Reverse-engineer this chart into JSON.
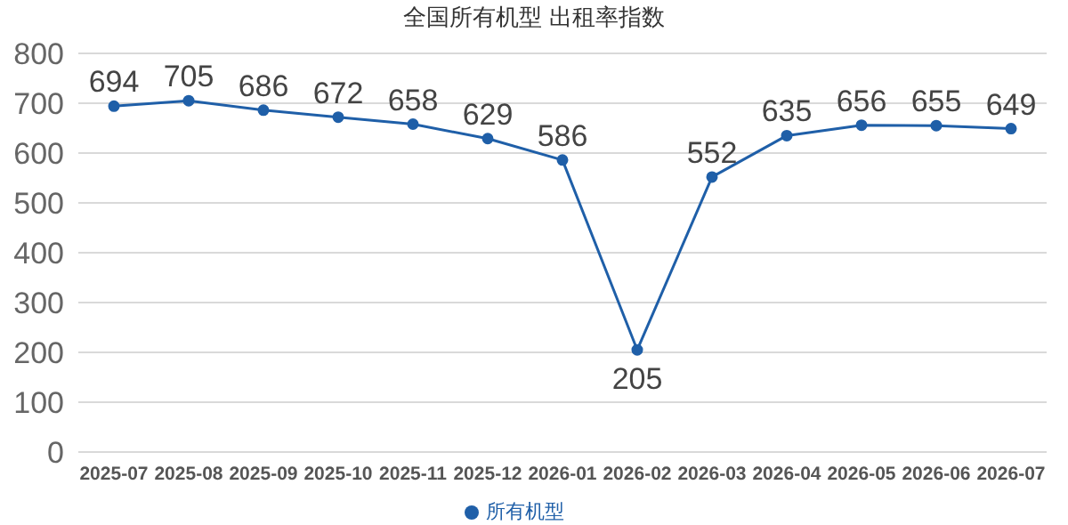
{
  "chart_data": {
    "type": "line",
    "title": "全国所有机型  出租率指数",
    "categories": [
      "2025-07",
      "2025-08",
      "2025-09",
      "2025-10",
      "2025-11",
      "2025-12",
      "2026-01",
      "2026-02",
      "2026-03",
      "2026-04",
      "2026-05",
      "2026-06",
      "2026-07"
    ],
    "series": [
      {
        "name": "所有机型",
        "color": "#1f5fa8",
        "values": [
          694,
          705,
          686,
          672,
          658,
          629,
          586,
          205,
          552,
          635,
          656,
          655,
          649
        ]
      }
    ],
    "ylim": [
      0,
      800
    ],
    "yticks": [
      0,
      100,
      200,
      300,
      400,
      500,
      600,
      700,
      800
    ],
    "grid": "y",
    "legend": "bottom",
    "marker": "circle",
    "line_style": "solid",
    "data_labels": true
  }
}
